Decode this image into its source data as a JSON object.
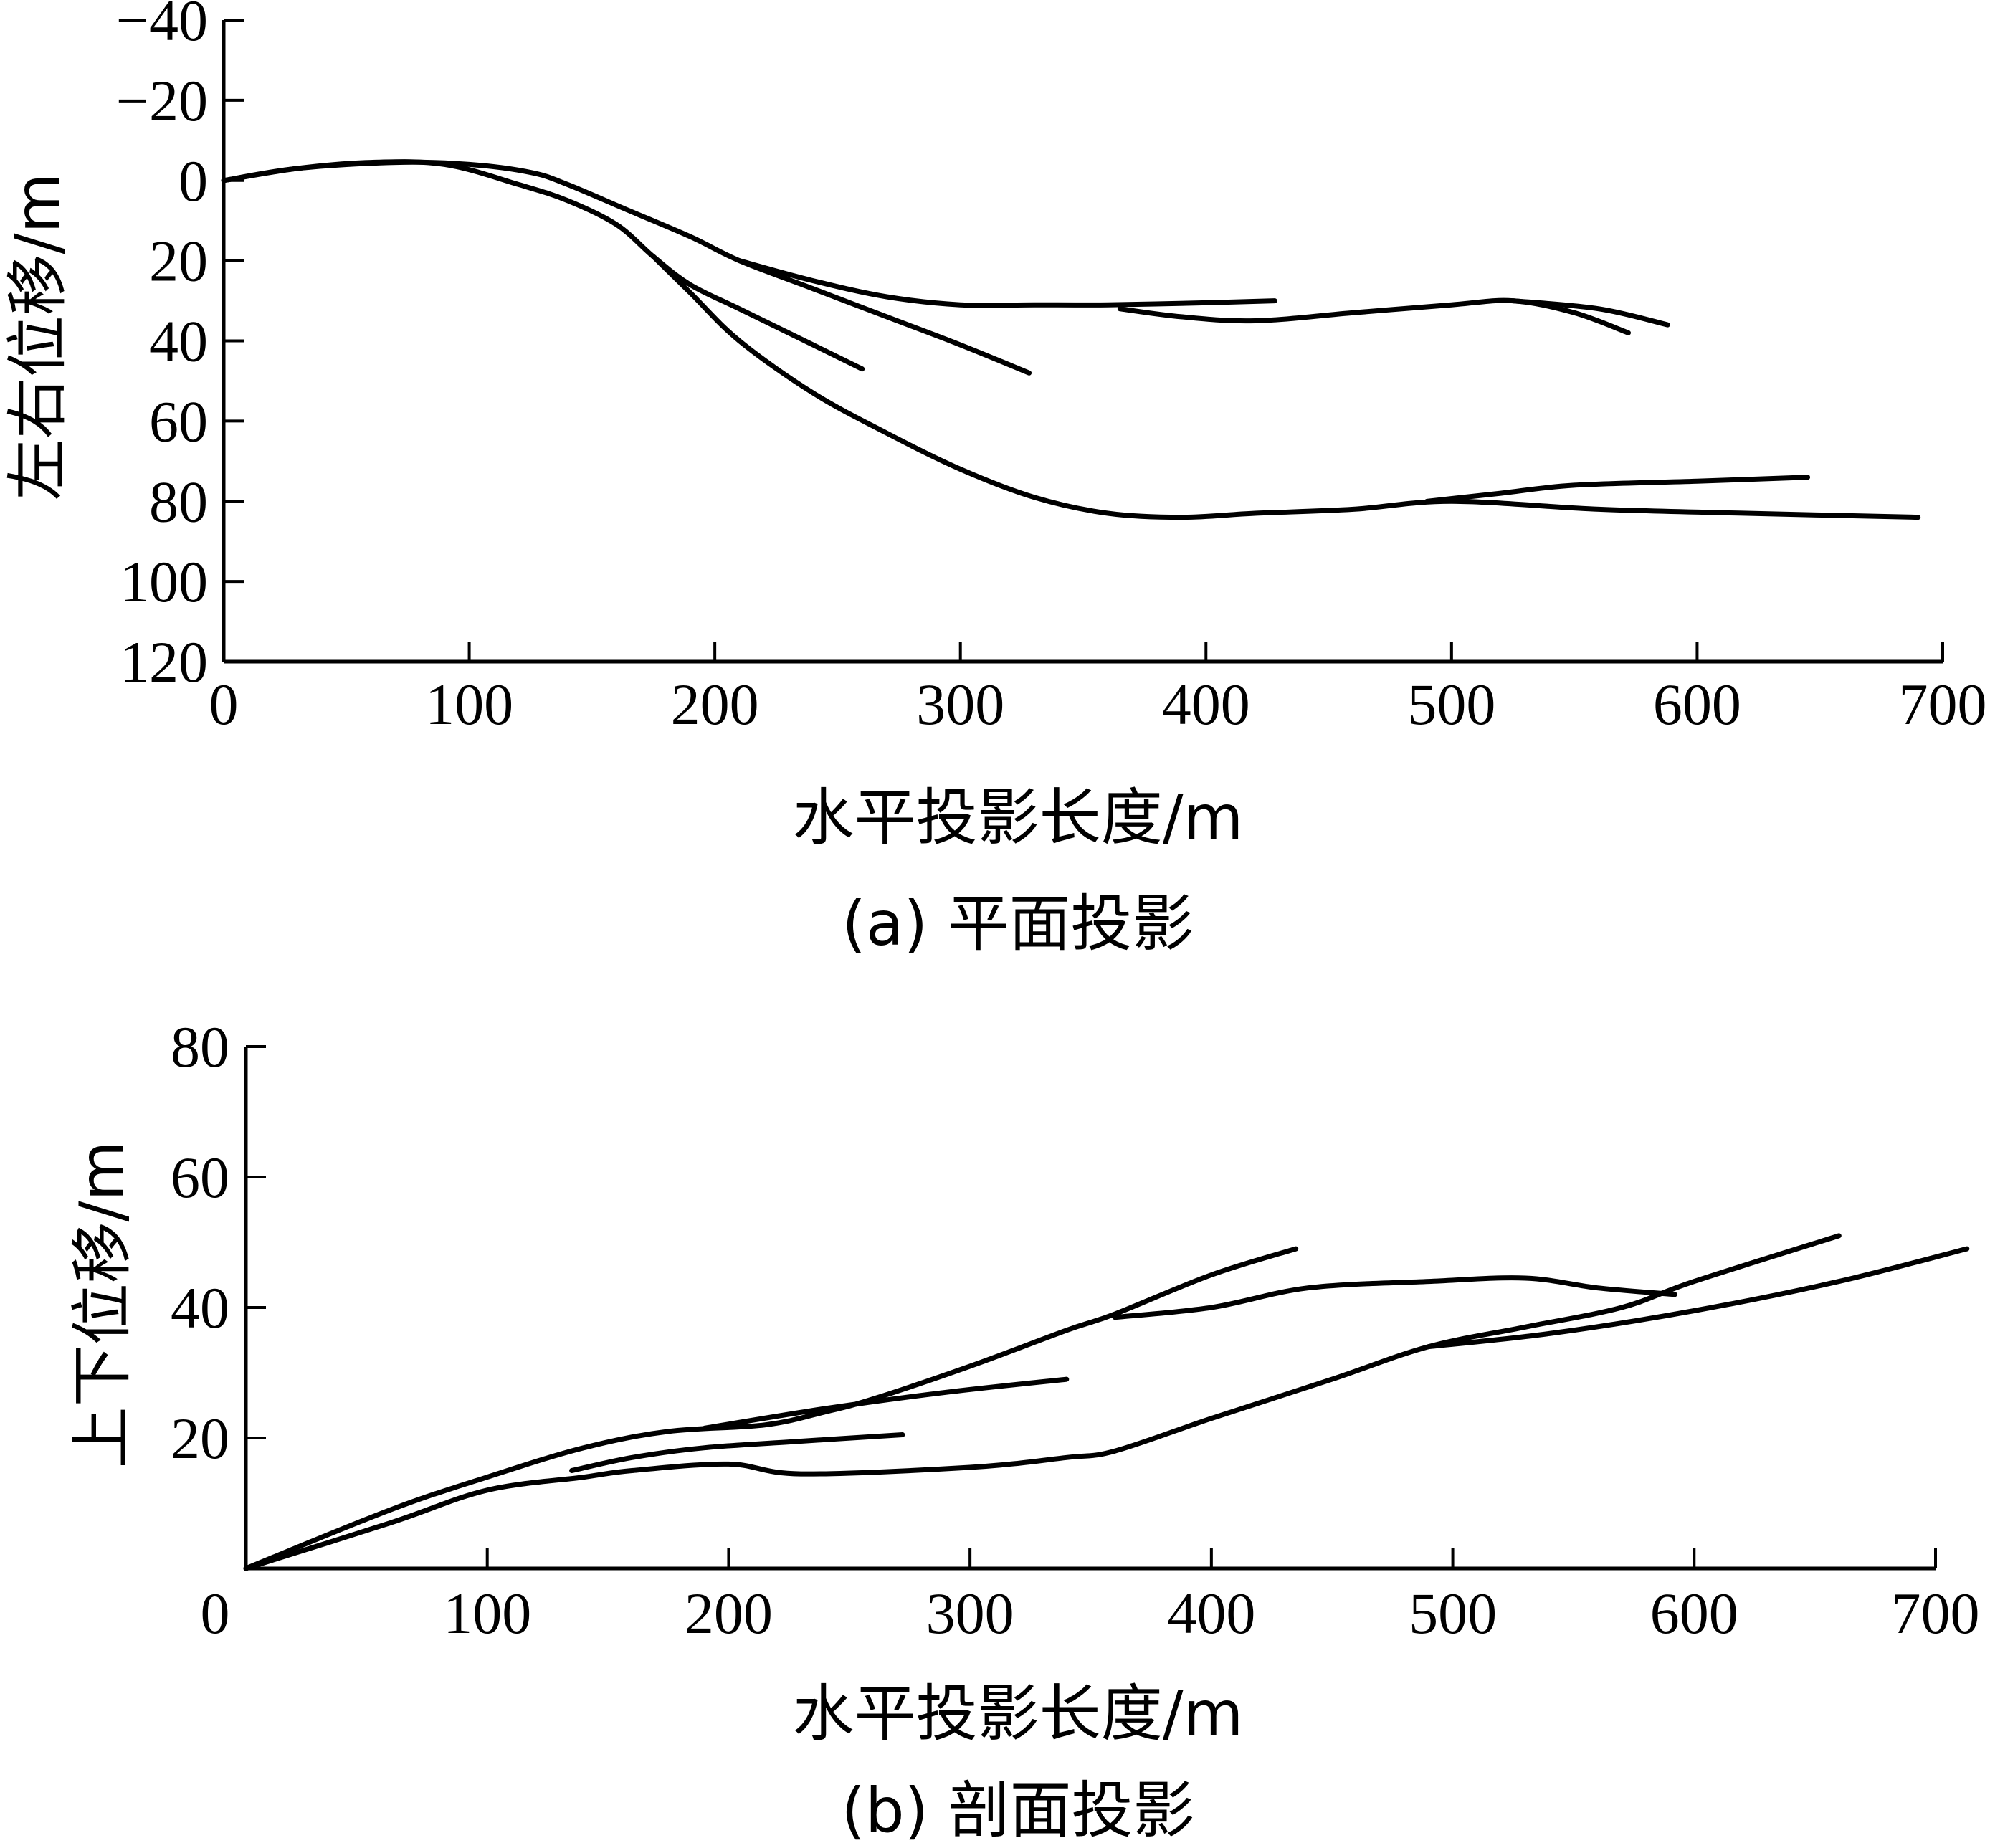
{
  "chart_data": [
    {
      "type": "line",
      "caption": "(a) 平面投影",
      "xlabel": "水平投影长度/m",
      "ylabel": "左右位移/m",
      "xlim": [
        0,
        700
      ],
      "ylim": [
        -40,
        120
      ],
      "y_inverted": true,
      "xticks": [
        0,
        100,
        200,
        300,
        400,
        500,
        600,
        700
      ],
      "yticks": [
        -40,
        -20,
        0,
        20,
        40,
        60,
        80,
        100,
        120
      ],
      "ytick_labels": [
        "−40",
        "−20",
        "0",
        "20",
        "40",
        "60",
        "80",
        "100",
        "120"
      ],
      "grid": false,
      "series": [
        {
          "x": [
            0,
            30,
            60,
            90,
            120,
            140,
            160,
            175,
            190,
            210,
            230,
            260
          ],
          "y": [
            0,
            -3,
            -4.5,
            -4,
            1,
            5,
            11,
            19,
            26,
            32,
            38,
            47
          ]
        },
        {
          "x": [
            0,
            30,
            70,
            100,
            125,
            140,
            165,
            190,
            210,
            240,
            270,
            300,
            328
          ],
          "y": [
            0,
            -3,
            -4.5,
            -4,
            -2,
            1,
            7.5,
            14,
            20,
            27,
            34,
            41,
            48
          ]
        },
        {
          "x": [
            175,
            190,
            210,
            240,
            270,
            300,
            330,
            360,
            390,
            420,
            460,
            500,
            560,
            620,
            690
          ],
          "y": [
            19,
            28,
            40,
            53,
            63,
            72,
            79,
            83,
            84,
            83,
            82,
            80,
            82,
            83,
            84
          ]
        },
        {
          "x": [
            210,
            240,
            270,
            300,
            330,
            360,
            400,
            428
          ],
          "y": [
            20,
            25,
            29,
            31,
            31,
            31,
            30.5,
            30
          ]
        },
        {
          "x": [
            365,
            390,
            420,
            460,
            500,
            525,
            550,
            572
          ],
          "y": [
            32,
            34,
            35,
            33,
            31,
            30,
            33,
            38
          ]
        },
        {
          "x": [
            525,
            560,
            588
          ],
          "y": [
            30,
            32,
            36
          ]
        },
        {
          "x": [
            490,
            520,
            550,
            600,
            645
          ],
          "y": [
            80,
            78,
            76,
            75,
            74
          ]
        }
      ]
    },
    {
      "type": "line",
      "caption": "(b) 剖面投影",
      "xlabel": "水平投影长度/m",
      "ylabel": "上下位移/m",
      "xlim": [
        0,
        700
      ],
      "ylim": [
        0,
        80
      ],
      "xticks": [
        0,
        100,
        200,
        300,
        400,
        500,
        600,
        700
      ],
      "yticks": [
        20,
        40,
        60,
        80
      ],
      "ytick_labels": [
        "20",
        "40",
        "60",
        "80"
      ],
      "origin_label": "0",
      "grid": false,
      "series": [
        {
          "x": [
            0,
            60,
            100,
            140,
            175,
            215,
            240,
            260,
            300,
            340,
            360,
            400,
            435
          ],
          "y": [
            0,
            9,
            14,
            18.5,
            21,
            22,
            24,
            26,
            31,
            36.5,
            39,
            45,
            49
          ]
        },
        {
          "x": [
            0,
            60,
            100,
            140,
            160,
            200,
            230,
            300,
            340,
            360,
            400,
            450,
            490,
            530,
            570,
            600,
            660
          ],
          "y": [
            0,
            7,
            12,
            14,
            15,
            16,
            14.5,
            15.5,
            17,
            18,
            23,
            29,
            34,
            37,
            40,
            44,
            51
          ]
        },
        {
          "x": [
            135,
            160,
            190,
            230,
            272
          ],
          "y": [
            15,
            17,
            18.5,
            19.5,
            20.5
          ]
        },
        {
          "x": [
            190,
            240,
            290,
            340
          ],
          "y": [
            21.5,
            24.5,
            27,
            29
          ]
        },
        {
          "x": [
            360,
            400,
            440,
            490,
            530,
            560,
            592
          ],
          "y": [
            38.5,
            40,
            43,
            44,
            44.5,
            43,
            42
          ]
        },
        {
          "x": [
            490,
            540,
            600,
            660,
            713
          ],
          "y": [
            34,
            36,
            39.5,
            44,
            49
          ]
        }
      ]
    }
  ]
}
